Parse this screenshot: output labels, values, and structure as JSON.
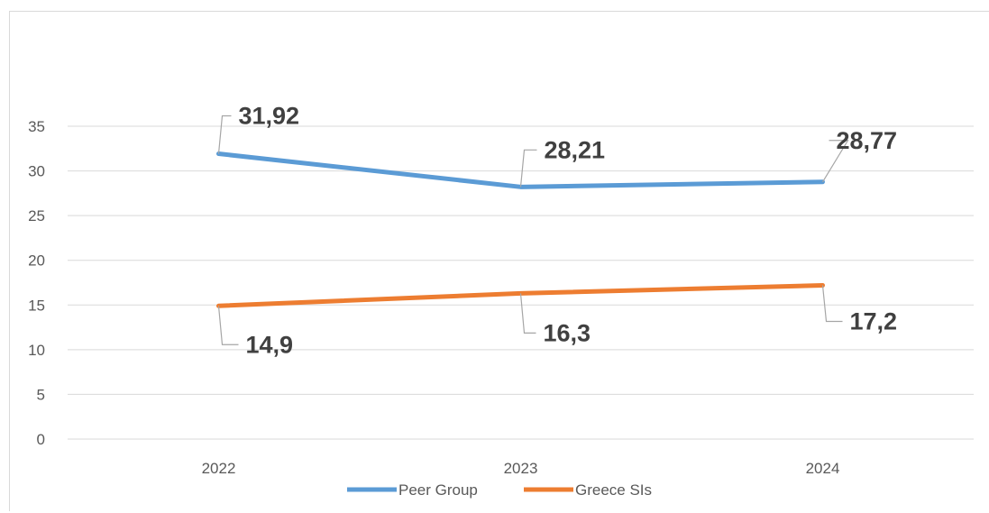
{
  "chart_data": {
    "type": "line",
    "categories": [
      "2022",
      "2023",
      "2024"
    ],
    "series": [
      {
        "name": "Peer Group",
        "values": [
          31.92,
          28.21,
          28.77
        ],
        "labels": [
          "31,92",
          "28,21",
          "28,77"
        ],
        "color": "#5b9bd5"
      },
      {
        "name": "Greece SIs",
        "values": [
          14.9,
          16.3,
          17.2
        ],
        "labels": [
          "14,9",
          "16,3",
          "17,2"
        ],
        "color": "#ed7d31"
      }
    ],
    "yticks": [
      "0",
      "5",
      "10",
      "15",
      "20",
      "25",
      "30",
      "35"
    ],
    "ylim": [
      0,
      35
    ],
    "grid": true,
    "legend": "bottom",
    "colors": {
      "gridline": "#d9d9d9",
      "leader": "#a6a6a6"
    }
  }
}
